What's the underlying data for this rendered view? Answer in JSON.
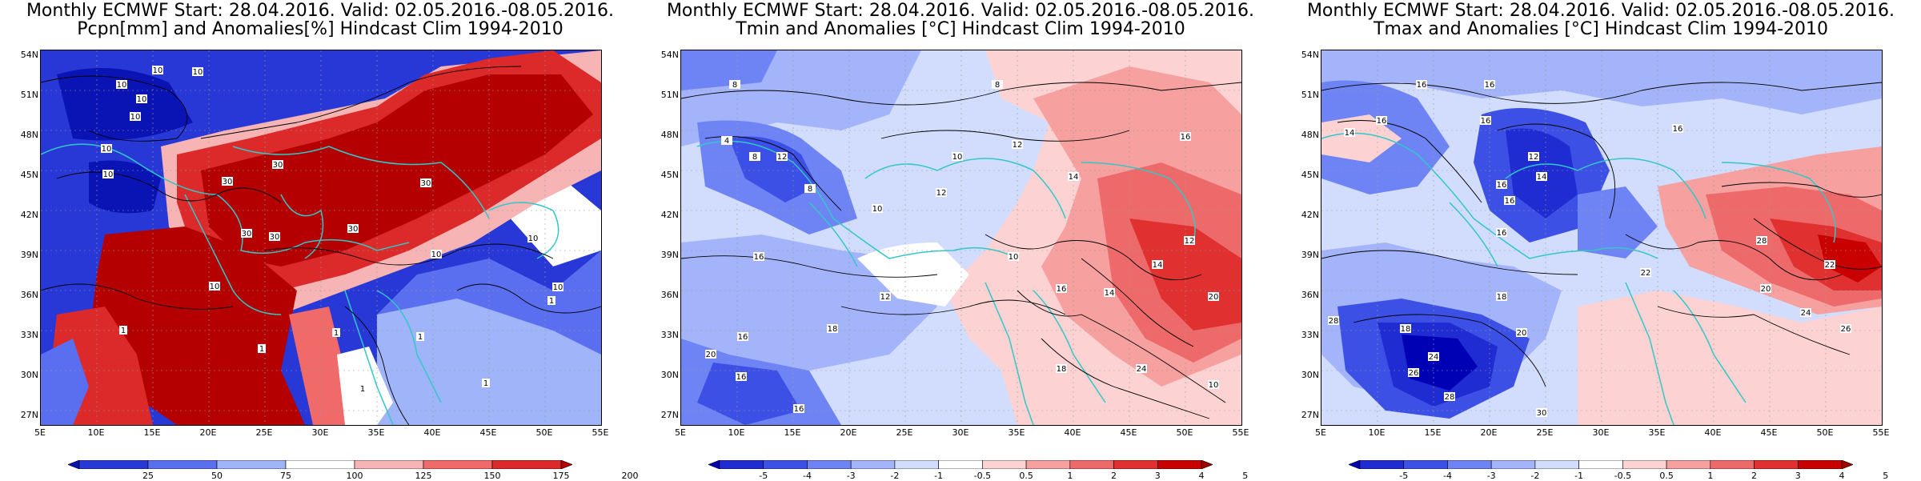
{
  "panels": [
    {
      "title_line1": "Monthly ECMWF Start: 28.04.2016. Valid: 02.05.2016.-08.05.2016.",
      "title_line2": "Pcpn[mm] and Anomalies[%] Hindcast Clim 1994-2010",
      "colorbar": {
        "ticks": [
          "25",
          "50",
          "75",
          "100",
          "125",
          "150",
          "175",
          "200"
        ],
        "colors": [
          "#0a14b4",
          "#2838d6",
          "#5a6ef0",
          "#a0b4fa",
          "#ffffff",
          "#f6b4b4",
          "#f06a6a",
          "#dc2a2a",
          "#b40000"
        ]
      },
      "contour_labels": [
        "10",
        "10",
        "10",
        "10",
        "10",
        "10",
        "10",
        "30",
        "30",
        "30",
        "30",
        "30",
        "30",
        "10",
        "10",
        "10",
        "1",
        "1",
        "1",
        "1",
        "1",
        "1",
        "1",
        "10"
      ]
    },
    {
      "title_line1": "Monthly ECMWF Start: 28.04.2016. Valid: 02.05.2016.-08.05.2016.",
      "title_line2": "Tmin and Anomalies [°C] Hindcast Clim 1994-2010",
      "colorbar": {
        "ticks": [
          "-5",
          "-4",
          "-3",
          "-2",
          "-1",
          "-0.5",
          "0.5",
          "1",
          "2",
          "3",
          "4",
          "5"
        ],
        "colors": [
          "#0000b4",
          "#1e2cd2",
          "#3c50e6",
          "#6e84f4",
          "#a4b4fa",
          "#d2dcfc",
          "#ffffff",
          "#fcd2d2",
          "#f6a0a0",
          "#ee6a6a",
          "#e03030",
          "#c80000",
          "#a00000"
        ]
      },
      "contour_labels": [
        "8",
        "8",
        "4",
        "8",
        "12",
        "8",
        "10",
        "10",
        "12",
        "14",
        "16",
        "12",
        "16",
        "16",
        "20",
        "18",
        "16",
        "12",
        "16",
        "10",
        "14",
        "16",
        "18",
        "24",
        "20",
        "14",
        "10",
        "12"
      ]
    },
    {
      "title_line1": "Monthly ECMWF Start: 28.04.2016. Valid: 02.05.2016.-08.05.2016.",
      "title_line2": "Tmax and Anomalies [°C] Hindcast Clim 1994-2010",
      "colorbar": {
        "ticks": [
          "-5",
          "-4",
          "-3",
          "-2",
          "-1",
          "-0.5",
          "0.5",
          "1",
          "2",
          "3",
          "4",
          "5"
        ],
        "colors": [
          "#0000b4",
          "#1e2cd2",
          "#3c50e6",
          "#6e84f4",
          "#a4b4fa",
          "#d2dcfc",
          "#ffffff",
          "#fcd2d2",
          "#f6a0a0",
          "#ee6a6a",
          "#e03030",
          "#c80000",
          "#a00000"
        ]
      },
      "contour_labels": [
        "16",
        "16",
        "14",
        "16",
        "16",
        "12",
        "16",
        "14",
        "16",
        "16",
        "16",
        "18",
        "22",
        "20",
        "18",
        "28",
        "20",
        "24",
        "26",
        "28",
        "24",
        "26",
        "30",
        "22",
        "28"
      ]
    }
  ],
  "axes": {
    "lat_labels": [
      "54N",
      "51N",
      "48N",
      "45N",
      "42N",
      "39N",
      "36N",
      "33N",
      "30N",
      "27N"
    ],
    "lon_labels": [
      "5E",
      "10E",
      "15E",
      "20E",
      "25E",
      "30E",
      "35E",
      "40E",
      "45E",
      "50E",
      "55E"
    ]
  }
}
